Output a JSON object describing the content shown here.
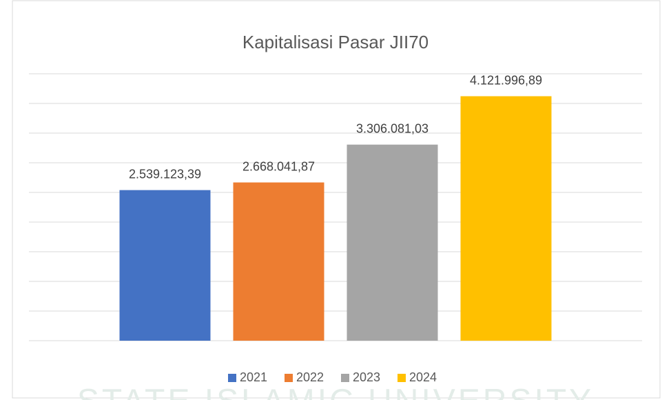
{
  "chart_data": {
    "type": "bar",
    "title": "Kapitalisasi Pasar JII70",
    "series": [
      {
        "name": "2021",
        "color": "#4472c4",
        "values": [
          2539123.39
        ],
        "value_labels": [
          "2.539.123,39"
        ]
      },
      {
        "name": "2022",
        "color": "#ed7d31",
        "values": [
          2668041.87
        ],
        "value_labels": [
          "2.668.041,87"
        ]
      },
      {
        "name": "2023",
        "color": "#a5a5a5",
        "values": [
          3306081.03
        ],
        "value_labels": [
          "3.306.081,03"
        ]
      },
      {
        "name": "2024",
        "color": "#ffc000",
        "values": [
          4121996.89
        ],
        "value_labels": [
          "4.121.996,89"
        ]
      }
    ],
    "ylim": [
      0,
      4500000
    ],
    "yticks": [
      0,
      500000,
      1000000,
      1500000,
      2000000,
      2500000,
      3000000,
      3500000,
      4000000,
      4500000
    ],
    "grid": true,
    "legend": "bottom",
    "watermark": "STATE ISLAMIC UNIVERSITY"
  }
}
